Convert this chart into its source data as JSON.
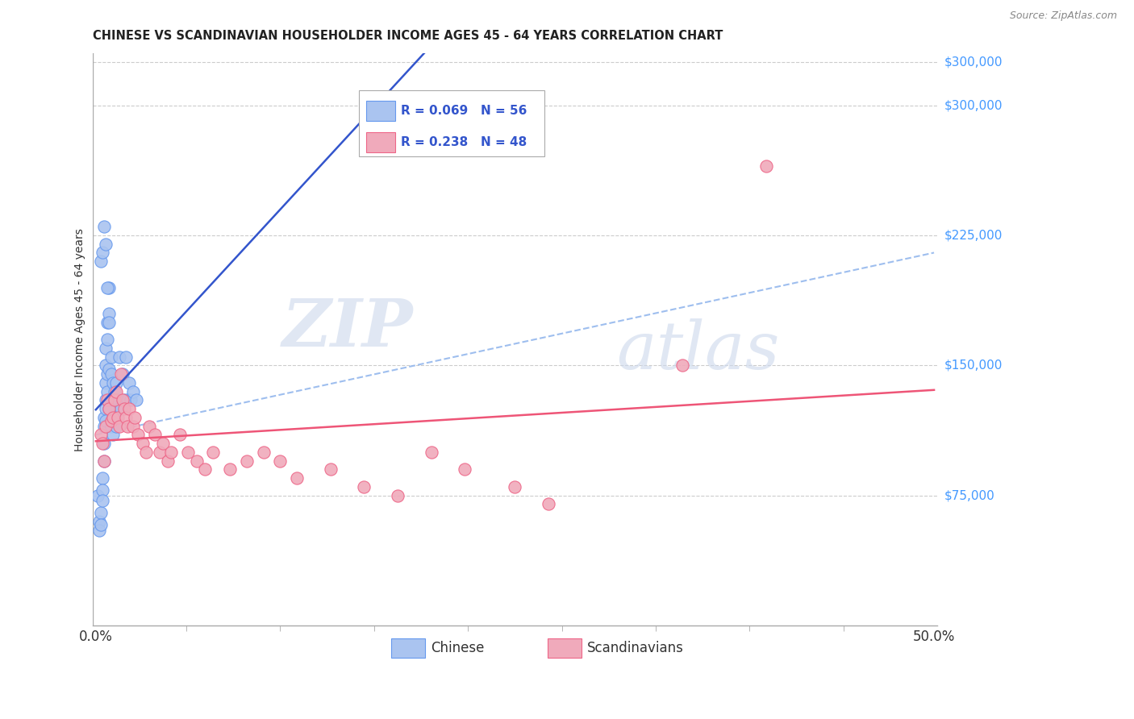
{
  "title": "CHINESE VS SCANDINAVIAN HOUSEHOLDER INCOME AGES 45 - 64 YEARS CORRELATION CHART",
  "source": "Source: ZipAtlas.com",
  "ylabel": "Householder Income Ages 45 - 64 years",
  "ytick_labels": [
    "$75,000",
    "$150,000",
    "$225,000",
    "$300,000"
  ],
  "ytick_values": [
    75000,
    150000,
    225000,
    300000
  ],
  "ylim": [
    0,
    330000
  ],
  "xlim": [
    -0.002,
    0.502
  ],
  "watermark_zip": "ZIP",
  "watermark_atlas": "atlas",
  "legend_chinese_R": "R = 0.069",
  "legend_chinese_N": "N = 56",
  "legend_scand_R": "R = 0.238",
  "legend_scand_N": "N = 48",
  "chinese_face": "#aac4f0",
  "chinese_edge": "#6699ee",
  "scand_face": "#f0aabb",
  "scand_edge": "#ee6688",
  "chinese_line_color": "#3355cc",
  "scand_line_color": "#ee5577",
  "dashed_line_color": "#99bbee",
  "background_color": "#ffffff",
  "grid_color": "#cccccc",
  "ytick_color": "#4499ff",
  "chinese_x": [
    0.001,
    0.002,
    0.002,
    0.003,
    0.003,
    0.004,
    0.004,
    0.004,
    0.005,
    0.005,
    0.005,
    0.005,
    0.006,
    0.006,
    0.006,
    0.006,
    0.006,
    0.006,
    0.007,
    0.007,
    0.007,
    0.007,
    0.008,
    0.008,
    0.008,
    0.008,
    0.009,
    0.009,
    0.009,
    0.009,
    0.01,
    0.01,
    0.01,
    0.01,
    0.011,
    0.011,
    0.012,
    0.012,
    0.013,
    0.014,
    0.014,
    0.015,
    0.016,
    0.017,
    0.018,
    0.019,
    0.02,
    0.021,
    0.022,
    0.024,
    0.003,
    0.004,
    0.005,
    0.006,
    0.007,
    0.008
  ],
  "chinese_y": [
    75000,
    60000,
    55000,
    65000,
    58000,
    85000,
    78000,
    72000,
    120000,
    115000,
    105000,
    95000,
    160000,
    150000,
    140000,
    130000,
    125000,
    118000,
    175000,
    165000,
    145000,
    135000,
    195000,
    180000,
    148000,
    125000,
    155000,
    145000,
    130000,
    115000,
    140000,
    130000,
    120000,
    110000,
    135000,
    120000,
    140000,
    115000,
    130000,
    155000,
    125000,
    125000,
    145000,
    130000,
    155000,
    130000,
    140000,
    130000,
    135000,
    130000,
    210000,
    215000,
    230000,
    220000,
    195000,
    175000
  ],
  "scand_x": [
    0.003,
    0.004,
    0.005,
    0.006,
    0.007,
    0.008,
    0.009,
    0.01,
    0.011,
    0.012,
    0.013,
    0.014,
    0.015,
    0.016,
    0.017,
    0.018,
    0.019,
    0.02,
    0.022,
    0.023,
    0.025,
    0.028,
    0.03,
    0.032,
    0.035,
    0.038,
    0.04,
    0.043,
    0.045,
    0.05,
    0.055,
    0.06,
    0.065,
    0.07,
    0.08,
    0.09,
    0.1,
    0.11,
    0.12,
    0.14,
    0.16,
    0.18,
    0.2,
    0.22,
    0.25,
    0.27,
    0.35,
    0.4
  ],
  "scand_y": [
    110000,
    105000,
    95000,
    115000,
    130000,
    125000,
    118000,
    120000,
    130000,
    135000,
    120000,
    115000,
    145000,
    130000,
    125000,
    120000,
    115000,
    125000,
    115000,
    120000,
    110000,
    105000,
    100000,
    115000,
    110000,
    100000,
    105000,
    95000,
    100000,
    110000,
    100000,
    95000,
    90000,
    100000,
    90000,
    95000,
    100000,
    95000,
    85000,
    90000,
    80000,
    75000,
    100000,
    90000,
    80000,
    70000,
    150000,
    265000
  ],
  "dashed_line_x0": 0.0,
  "dashed_line_y0": 110000,
  "dashed_line_x1": 0.5,
  "dashed_line_y1": 215000
}
